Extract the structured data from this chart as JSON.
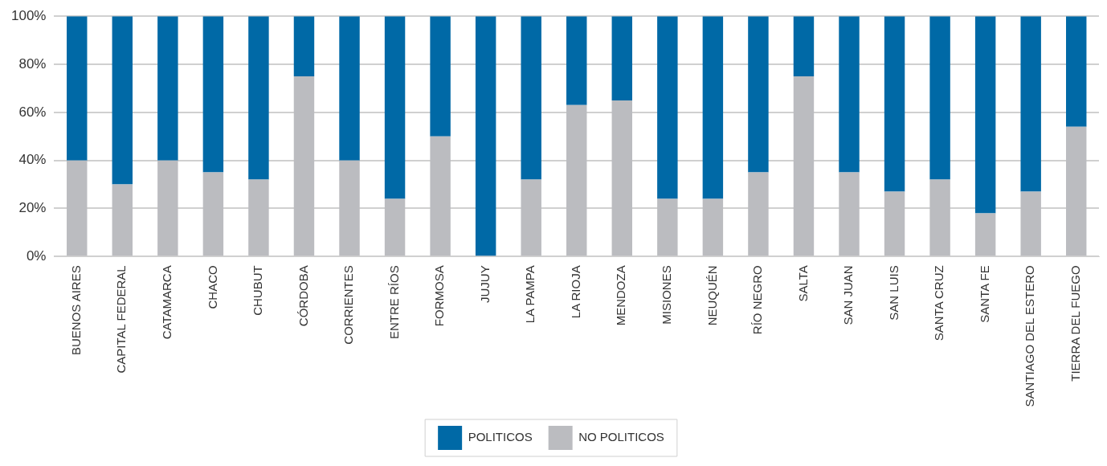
{
  "chart_data": {
    "type": "bar",
    "stacked": true,
    "categories": [
      "BUENOS AIRES",
      "CAPITAL FEDERAL",
      "CATAMARCA",
      "CHACO",
      "CHUBUT",
      "CÓRDOBA",
      "CORRIENTES",
      "ENTRE RÍOS",
      "FORMOSA",
      "JUJUY",
      "LA PAMPA",
      "LA RIOJA",
      "MENDOZA",
      "MISIONES",
      "NEUQUÉN",
      "RÍO NEGRO",
      "SALTA",
      "SAN JUAN",
      "SAN LUIS",
      "SANTA CRUZ",
      "SANTA FE",
      "SANTIAGO DEL ESTERO",
      "TIERRA DEL FUEGO"
    ],
    "series": [
      {
        "name": "NO POLITICOS",
        "color": "#bbbcc0",
        "values": [
          40,
          30,
          40,
          35,
          32,
          75,
          40,
          24,
          50,
          0,
          32,
          63,
          65,
          24,
          24,
          35,
          75,
          35,
          27,
          32,
          18,
          27,
          54
        ]
      },
      {
        "name": "POLITICOS",
        "color": "#0069a6",
        "values": [
          60,
          70,
          60,
          65,
          68,
          25,
          60,
          76,
          50,
          100,
          68,
          37,
          35,
          76,
          76,
          65,
          25,
          65,
          73,
          68,
          82,
          73,
          46
        ]
      }
    ],
    "ylim": [
      0,
      100
    ],
    "yticks": [
      {
        "value": 0,
        "label": "0%"
      },
      {
        "value": 20,
        "label": "20%"
      },
      {
        "value": 40,
        "label": "40%"
      },
      {
        "value": 60,
        "label": "60%"
      },
      {
        "value": 80,
        "label": "80%"
      },
      {
        "value": 100,
        "label": "100%"
      }
    ],
    "grid": "y",
    "legend": "bottom"
  }
}
